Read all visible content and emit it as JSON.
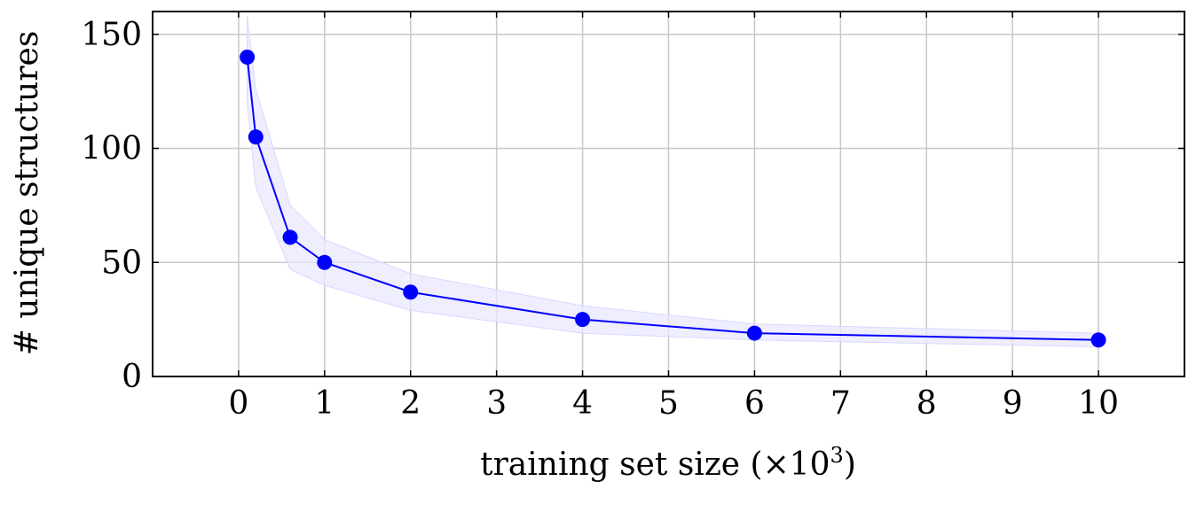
{
  "chart_data": {
    "type": "line",
    "title": "",
    "xlabel": "training set size (×10",
    "xlabel_sup": "3",
    "xlabel_close": ")",
    "ylabel": "# unique structures",
    "xlim": [
      -1,
      11
    ],
    "ylim": [
      0,
      160
    ],
    "xticks": [
      0,
      1,
      2,
      3,
      4,
      5,
      6,
      7,
      8,
      9,
      10
    ],
    "yticks": [
      0,
      50,
      100,
      150
    ],
    "xtick_labels": [
      "0",
      "1",
      "2",
      "3",
      "4",
      "5",
      "6",
      "7",
      "8",
      "9",
      "10"
    ],
    "ytick_labels": [
      "0",
      "50",
      "100",
      "150"
    ],
    "grid": true,
    "series": [
      {
        "color": "#0000ff",
        "marker": "circle",
        "x": [
          0.1,
          0.2,
          0.6,
          1,
          2,
          4,
          6,
          10
        ],
        "y": [
          140,
          105,
          61,
          50,
          37,
          25,
          19,
          16
        ],
        "band_lower": [
          120,
          83,
          47,
          40,
          29,
          19,
          16,
          13
        ],
        "band_upper": [
          158,
          126,
          75,
          60,
          45,
          31,
          23,
          19
        ],
        "band_color": "#e8e8ff"
      }
    ]
  }
}
